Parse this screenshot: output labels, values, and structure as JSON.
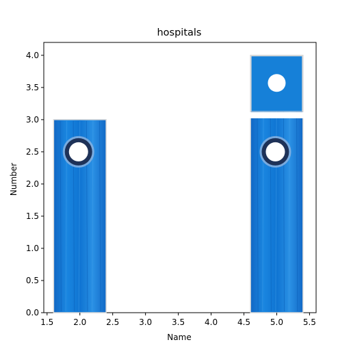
{
  "chart_data": {
    "type": "bar",
    "title": "hospitals",
    "xlabel": "Name",
    "ylabel": "Number",
    "xlim": [
      1.45,
      5.6
    ],
    "ylim": [
      0,
      4.2
    ],
    "x_ticks": [
      "1.5",
      "2.0",
      "2.5",
      "3.0",
      "3.5",
      "4.0",
      "4.5",
      "5.0",
      "5.5"
    ],
    "y_ticks": [
      "0.0",
      "0.5",
      "1.0",
      "1.5",
      "2.0",
      "2.5",
      "3.0",
      "3.5",
      "4.0"
    ],
    "x": [
      2,
      5
    ],
    "values": [
      3,
      4
    ],
    "bar_width": 0.8,
    "bar_color": "#1a7fd6",
    "grid": false,
    "legend": "none"
  }
}
